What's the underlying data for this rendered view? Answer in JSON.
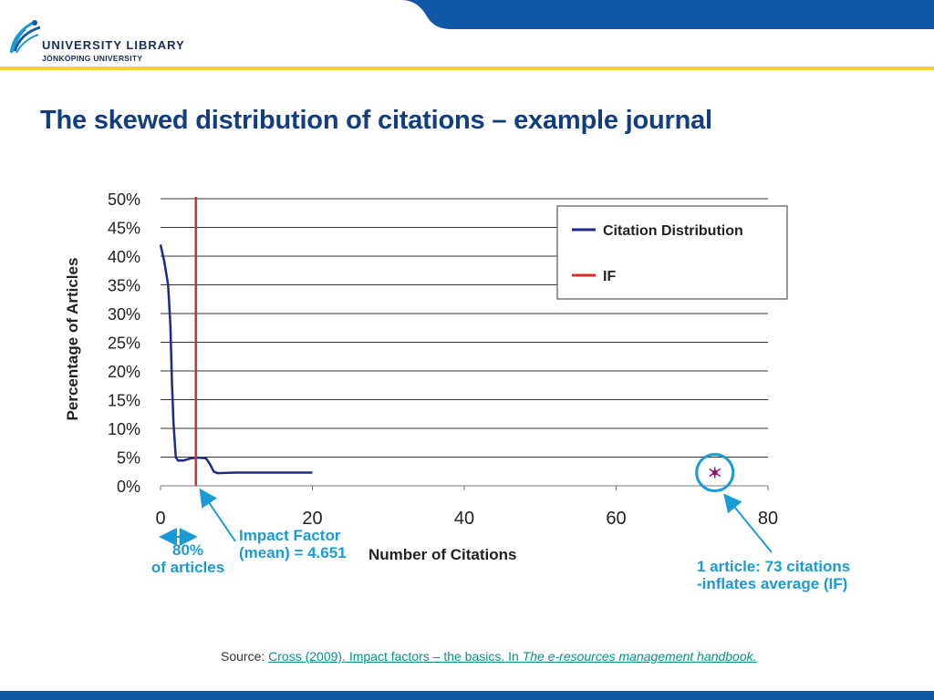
{
  "header": {
    "library_name": "UNIVERSITY  LIBRARY",
    "university_name": "JÖNKÖPING UNIVERSITY",
    "brand_blue": "#1057a6",
    "accent_yellow": "#f7d22b"
  },
  "slide": {
    "title": "The skewed distribution of citations – example journal"
  },
  "chart_data": {
    "type": "line",
    "xlabel": "Number of Citations",
    "ylabel": "Percentage of Articles",
    "xlim": [
      0,
      80
    ],
    "ylim": [
      0,
      50
    ],
    "x_ticks": [
      "0",
      "20",
      "40",
      "60",
      "80"
    ],
    "y_ticks": [
      "0%",
      "5%",
      "10%",
      "15%",
      "20%",
      "25%",
      "30%",
      "35%",
      "40%",
      "45%",
      "50%"
    ],
    "grid": "horizontal",
    "legend_position": "top-right",
    "series": [
      {
        "name": "Citation Distribution",
        "color": "#1f2a8a",
        "points": [
          [
            0,
            42
          ],
          [
            0.5,
            39
          ],
          [
            1,
            35
          ],
          [
            1.3,
            28
          ],
          [
            1.5,
            18
          ],
          [
            1.7,
            11
          ],
          [
            2,
            5
          ],
          [
            2.3,
            4.4
          ],
          [
            3,
            4.4
          ],
          [
            4,
            4.8
          ],
          [
            5,
            4.9
          ],
          [
            6,
            4.8
          ],
          [
            6.5,
            3.8
          ],
          [
            7,
            2.5
          ],
          [
            7.5,
            2.2
          ],
          [
            10,
            2.3
          ],
          [
            15,
            2.3
          ],
          [
            20,
            2.3
          ]
        ]
      },
      {
        "name": "IF",
        "color": "#e32828",
        "x": 4.651
      }
    ],
    "outlier": {
      "x": 73,
      "y": 2.3,
      "color": "#8b1a6e"
    },
    "annotations": {
      "range_top": "80%",
      "range_bottom": "of articles",
      "if_line1": "Impact Factor",
      "if_line2": "(mean) = 4.651",
      "outlier_line1": "1 article: 73 citations",
      "outlier_line2": "-inflates average (IF)",
      "color": "#1b9bd6"
    }
  },
  "source": {
    "prefix": "Source: ",
    "link_text": "Cross (2009). Impact factors – the basics. In ",
    "link_italic": "The e-resources management handbook."
  }
}
